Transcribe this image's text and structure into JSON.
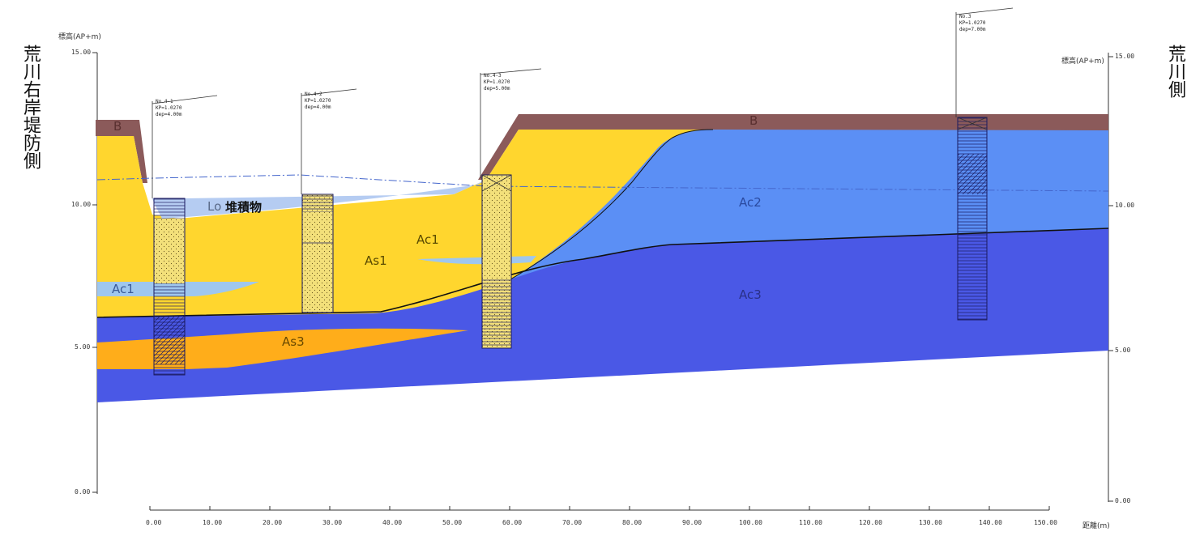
{
  "side_titles": {
    "left": "荒川右岸堤防側",
    "right": "荒川側"
  },
  "axes": {
    "left_label": "標高(AP+m)",
    "right_label": "標高(AP+m)",
    "bottom_label": "距離(m)",
    "left_ticks": [
      "15.00",
      "10.00",
      "5.00",
      "0.00"
    ],
    "right_ticks": [
      "15.00",
      "10.00",
      "5.00",
      "0.00"
    ],
    "x_ticks": [
      "0.00",
      "10.00",
      "20.00",
      "30.00",
      "40.00",
      "50.00",
      "60.00",
      "70.00",
      "80.00",
      "90.00",
      "100.00",
      "110.00",
      "120.00",
      "130.00",
      "140.00",
      "150.00"
    ]
  },
  "layers": {
    "b": "B",
    "lo_deposit": "Lo",
    "deposit": "堆積物",
    "as1": "As1",
    "ac1_left": "Ac1",
    "ac1_mid": "Ac1",
    "as3": "As3",
    "ac2": "Ac2",
    "ac3": "Ac3"
  },
  "layer_colors": {
    "b": "#8b5a5a",
    "as1": "#ffd62e",
    "ac1": "#9fc7ee",
    "ac2": "#5b8ff5",
    "ac3": "#4a58e6",
    "as3": "#ffad1a",
    "deposit": "#b5ccf2"
  },
  "boreholes": [
    {
      "id": "No.4-1",
      "kp": "KP=1.0270",
      "dep": "dep=4.00m"
    },
    {
      "id": "No.4-2",
      "kp": "KP=1.0270",
      "dep": "dep=4.00m"
    },
    {
      "id": "No.4-3",
      "kp": "KP=1.0270",
      "dep": "dep=5.00m"
    },
    {
      "id": "No.3",
      "kp": "KP=1.0270",
      "dep": "dep=7.00m"
    }
  ]
}
